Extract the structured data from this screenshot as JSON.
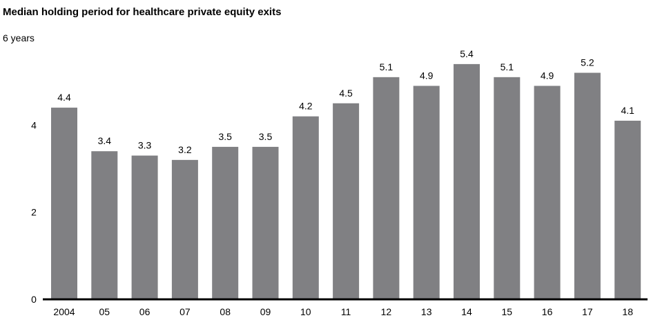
{
  "chart_data": {
    "type": "bar",
    "title": "Median holding period for healthcare private equity exits",
    "xlabel": "",
    "ylabel": "",
    "y_top_label": "6 years",
    "ylim": [
      0,
      6
    ],
    "yticks": [
      0,
      2,
      4
    ],
    "categories": [
      "2004",
      "05",
      "06",
      "07",
      "08",
      "09",
      "10",
      "11",
      "12",
      "13",
      "14",
      "15",
      "16",
      "17",
      "18"
    ],
    "values": [
      4.4,
      3.4,
      3.3,
      3.2,
      3.5,
      3.5,
      4.2,
      4.5,
      5.1,
      4.9,
      5.4,
      5.1,
      4.9,
      5.2,
      4.1
    ],
    "bar_color": "#808083",
    "axis_color": "#000000",
    "grid": false,
    "legend": "none"
  }
}
